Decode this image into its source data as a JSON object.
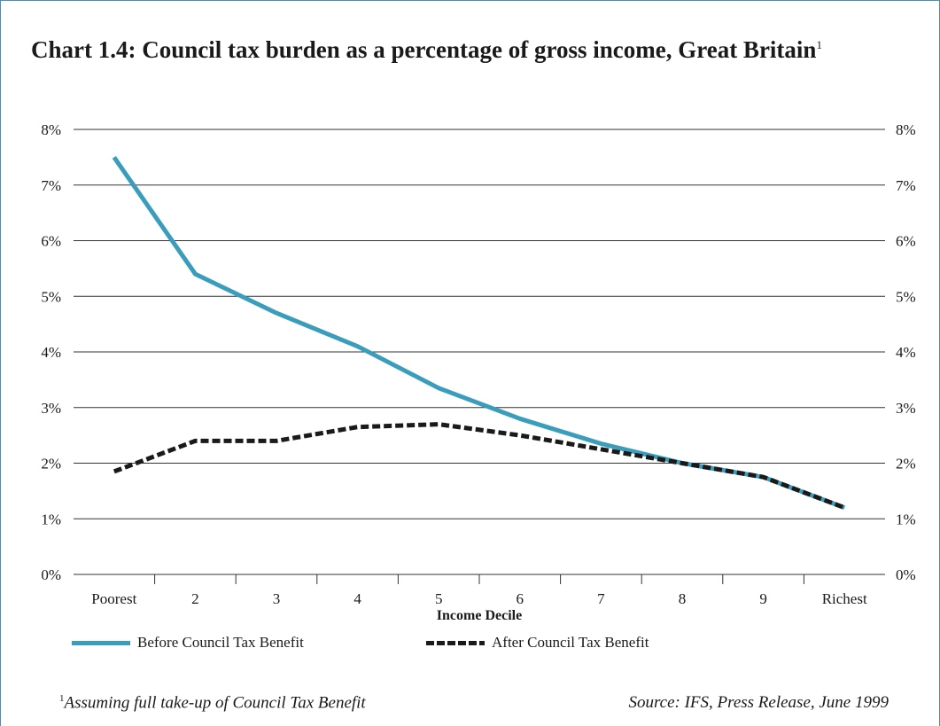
{
  "header": {
    "title": "Chart 1.4: Council tax burden as a percentage of gross income, Great Britain",
    "title_marker": "1"
  },
  "footer": {
    "footnote_marker": "1",
    "footnote": "Assuming full take-up of Council Tax Benefit",
    "source": "Source: IFS, Press Release, June 1999"
  },
  "chart_data": {
    "type": "line",
    "title": "Chart 1.4: Council tax burden as a percentage of gross income, Great Britain",
    "xlabel": "Income Decile",
    "ylabel": "",
    "categories": [
      "Poorest",
      "2",
      "3",
      "4",
      "5",
      "6",
      "7",
      "8",
      "9",
      "Richest"
    ],
    "ylim": [
      0,
      8
    ],
    "yticks": [
      "0%",
      "1%",
      "2%",
      "3%",
      "4%",
      "5%",
      "6%",
      "7%",
      "8%"
    ],
    "y_axis_both_sides": true,
    "grid": true,
    "legend_position": "bottom-left",
    "series": [
      {
        "name": "Before Council Tax Benefit",
        "color": "#3a9dbb",
        "style": "solid",
        "values": [
          7.5,
          5.4,
          4.7,
          4.1,
          3.35,
          2.8,
          2.35,
          2.0,
          1.75,
          1.2
        ]
      },
      {
        "name": "After Council Tax Benefit",
        "color": "#1a1a1a",
        "style": "dashed",
        "values": [
          1.85,
          2.4,
          2.4,
          2.65,
          2.7,
          2.5,
          2.25,
          2.0,
          1.75,
          1.2
        ]
      }
    ]
  }
}
